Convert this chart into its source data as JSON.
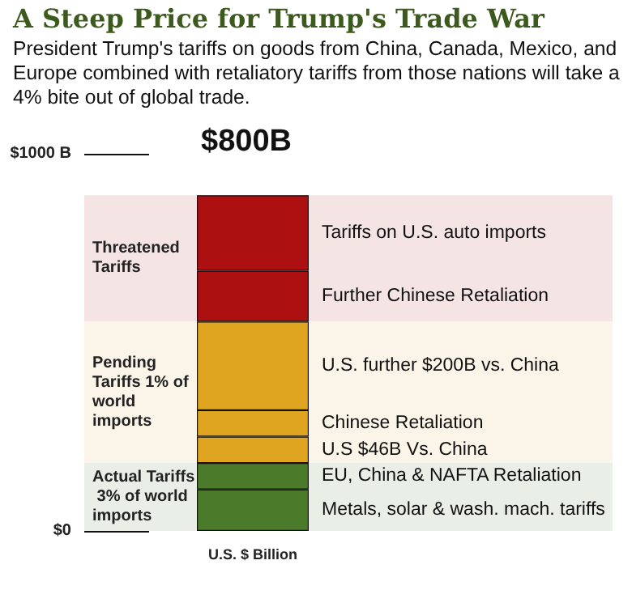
{
  "chart_data": {
    "type": "bar",
    "stacked": true,
    "title": "A Steep Price for Trump's Trade War",
    "subtitle": "President Trump's tariffs on goods from China, Canada, Mexico, and Europe combined with retaliatory tariffs from those nations will take a 4% bite out of global trade.",
    "xlabel": "U.S. $ Billion",
    "categories": [
      null
    ],
    "series": [
      {
        "name": "Metals, solar & wash. mach. tariffs",
        "color": "#4a7a2a",
        "values": [
          110
        ]
      },
      {
        "name": "EU, China & NAFTA Retaliation",
        "color": "#4a7a2a",
        "values": [
          70
        ]
      },
      {
        "name": "U.S $46B Vs. China",
        "color": "#e0a520",
        "values": [
          70
        ]
      },
      {
        "name": "Chinese Retaliation",
        "color": "#e0a520",
        "values": [
          70
        ]
      },
      {
        "name": "U.S. further $200B vs. China",
        "color": "#e0a520",
        "values": [
          235
        ]
      },
      {
        "name": "Further Chinese Retaliation",
        "color": "#ad1010",
        "values": [
          135
        ]
      },
      {
        "name": "Tariffs on U.S. auto imports",
        "color": "#ad1010",
        "values": [
          200
        ]
      }
    ],
    "bands": [
      {
        "axis": "y",
        "from": 0,
        "to": 180,
        "label": "Actual Tariffs 3% of world imports",
        "color": "#e9efe7"
      },
      {
        "axis": "y",
        "from": 180,
        "to": 555,
        "label": "Pending Tariffs 1% of world imports",
        "color": "#fbf4e8"
      },
      {
        "axis": "y",
        "from": 555,
        "to": 890,
        "label": "Threatened Tariffs",
        "color": "#f5e4e4"
      }
    ],
    "annotations": [
      "$800B"
    ],
    "ylim": [
      0,
      1000
    ],
    "yticks": [
      {
        "value": 0,
        "label": "$0"
      },
      {
        "value": 1000,
        "label": "$1000 B"
      }
    ],
    "grid": false,
    "legend": false
  }
}
